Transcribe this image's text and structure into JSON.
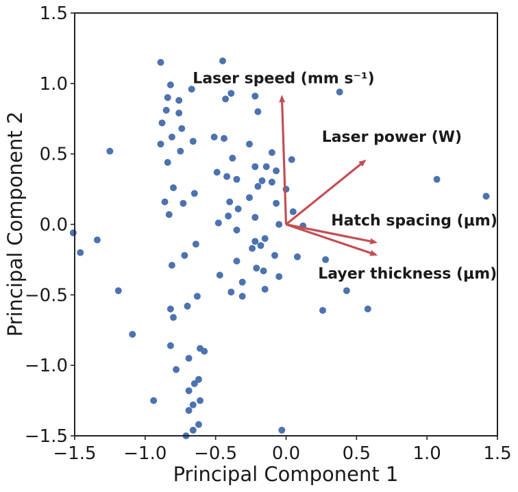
{
  "chart_data": {
    "type": "scatter",
    "title": "",
    "xlabel": "Principal Component 1",
    "ylabel": "Principal Component 2",
    "xlim": [
      -1.5,
      1.5
    ],
    "ylim": [
      -1.5,
      1.5
    ],
    "xticks": [
      -1.5,
      -1.0,
      -0.5,
      0.0,
      0.5,
      1.0,
      1.5
    ],
    "yticks": [
      -1.5,
      -1.0,
      -0.5,
      0.0,
      0.5,
      1.0,
      1.5
    ],
    "xtick_labels": [
      "−1.5",
      "−1.0",
      "−0.5",
      "0.0",
      "0.5",
      "1.0",
      "1.5"
    ],
    "ytick_labels": [
      "−1.5",
      "−1.0",
      "−0.5",
      "0.0",
      "0.5",
      "1.0",
      "1.5"
    ],
    "grid": false,
    "point_color": "#4c72b0",
    "vector_color": "#c44e52",
    "points": [
      [
        -0.89,
        1.15
      ],
      [
        -0.45,
        1.16
      ],
      [
        -0.82,
        0.99
      ],
      [
        -0.67,
        0.96
      ],
      [
        -0.39,
        0.93
      ],
      [
        -0.22,
        0.91
      ],
      [
        0.38,
        0.94
      ],
      [
        -0.84,
        0.9
      ],
      [
        -0.76,
        0.88
      ],
      [
        -0.43,
        0.89
      ],
      [
        -0.85,
        0.81
      ],
      [
        -0.2,
        0.8
      ],
      [
        -0.76,
        0.79
      ],
      [
        -0.88,
        0.72
      ],
      [
        -0.74,
        0.68
      ],
      [
        -0.81,
        0.62
      ],
      [
        -0.51,
        0.62
      ],
      [
        -0.44,
        0.61
      ],
      [
        -0.89,
        0.57
      ],
      [
        -0.66,
        0.59
      ],
      [
        -0.26,
        0.57
      ],
      [
        -1.25,
        0.52
      ],
      [
        -0.75,
        0.52
      ],
      [
        -0.1,
        0.51
      ],
      [
        -0.84,
        0.44
      ],
      [
        -0.38,
        0.47
      ],
      [
        0.04,
        0.46
      ],
      [
        -0.22,
        0.41
      ],
      [
        -0.14,
        0.41
      ],
      [
        -0.07,
        0.38
      ],
      [
        -0.49,
        0.37
      ],
      [
        -0.42,
        0.34
      ],
      [
        -0.35,
        0.32
      ],
      [
        -0.17,
        0.31
      ],
      [
        1.07,
        0.32
      ],
      [
        -0.8,
        0.26
      ],
      [
        -0.65,
        0.22
      ],
      [
        -0.2,
        0.27
      ],
      [
        -0.1,
        0.3
      ],
      [
        -0.26,
        0.19
      ],
      [
        0.0,
        0.25
      ],
      [
        -0.86,
        0.16
      ],
      [
        -0.73,
        0.15
      ],
      [
        -0.4,
        0.16
      ],
      [
        -0.07,
        0.15
      ],
      [
        1.42,
        0.2
      ],
      [
        -0.34,
        0.11
      ],
      [
        -0.41,
        0.06
      ],
      [
        -0.83,
        0.07
      ],
      [
        0.05,
        0.09
      ],
      [
        -0.48,
        0.01
      ],
      [
        -0.22,
        0.05
      ],
      [
        -0.05,
        0.0
      ],
      [
        0.12,
        -0.01
      ],
      [
        -1.51,
        -0.06
      ],
      [
        -0.35,
        -0.04
      ],
      [
        -1.34,
        -0.11
      ],
      [
        -0.64,
        -0.14
      ],
      [
        -0.22,
        -0.12
      ],
      [
        -0.18,
        -0.15
      ],
      [
        -0.15,
        -0.1
      ],
      [
        -0.24,
        -0.17
      ],
      [
        -1.46,
        -0.2
      ],
      [
        -0.72,
        -0.22
      ],
      [
        -0.08,
        -0.22
      ],
      [
        0.08,
        -0.23
      ],
      [
        0.28,
        -0.25
      ],
      [
        -0.35,
        -0.26
      ],
      [
        -0.81,
        -0.29
      ],
      [
        -0.21,
        -0.31
      ],
      [
        -0.16,
        -0.33
      ],
      [
        -0.05,
        -0.37
      ],
      [
        -0.47,
        -0.36
      ],
      [
        -0.31,
        -0.41
      ],
      [
        -1.19,
        -0.47
      ],
      [
        -0.39,
        -0.48
      ],
      [
        -0.31,
        -0.51
      ],
      [
        -0.15,
        -0.46
      ],
      [
        0.43,
        -0.47
      ],
      [
        -0.63,
        -0.51
      ],
      [
        -0.7,
        -0.58
      ],
      [
        -0.82,
        -0.6
      ],
      [
        0.26,
        -0.61
      ],
      [
        0.58,
        -0.6
      ],
      [
        -0.8,
        -0.66
      ],
      [
        -1.09,
        -0.78
      ],
      [
        -0.82,
        -0.86
      ],
      [
        -0.61,
        -0.88
      ],
      [
        -0.58,
        -0.9
      ],
      [
        -0.69,
        -0.95
      ],
      [
        -0.78,
        -1.03
      ],
      [
        -0.62,
        -1.1
      ],
      [
        -0.65,
        -1.13
      ],
      [
        -0.69,
        -1.18
      ],
      [
        -0.94,
        -1.25
      ],
      [
        -0.61,
        -1.25
      ],
      [
        -0.66,
        -1.28
      ],
      [
        -0.69,
        -1.32
      ],
      [
        -0.62,
        -1.42
      ],
      [
        -0.66,
        -1.46
      ],
      [
        -0.03,
        -1.46
      ],
      [
        -0.71,
        -1.5
      ]
    ],
    "vectors": [
      {
        "label": "Laser speed (mm s⁻¹)",
        "x": -0.03,
        "y": 0.92
      },
      {
        "label": "Laser power (W)",
        "x": 0.57,
        "y": 0.46
      },
      {
        "label": "Hatch spacing (μm)",
        "x": 0.65,
        "y": -0.13
      },
      {
        "label": "Layer thickness (μm)",
        "x": 0.65,
        "y": -0.22
      }
    ]
  }
}
